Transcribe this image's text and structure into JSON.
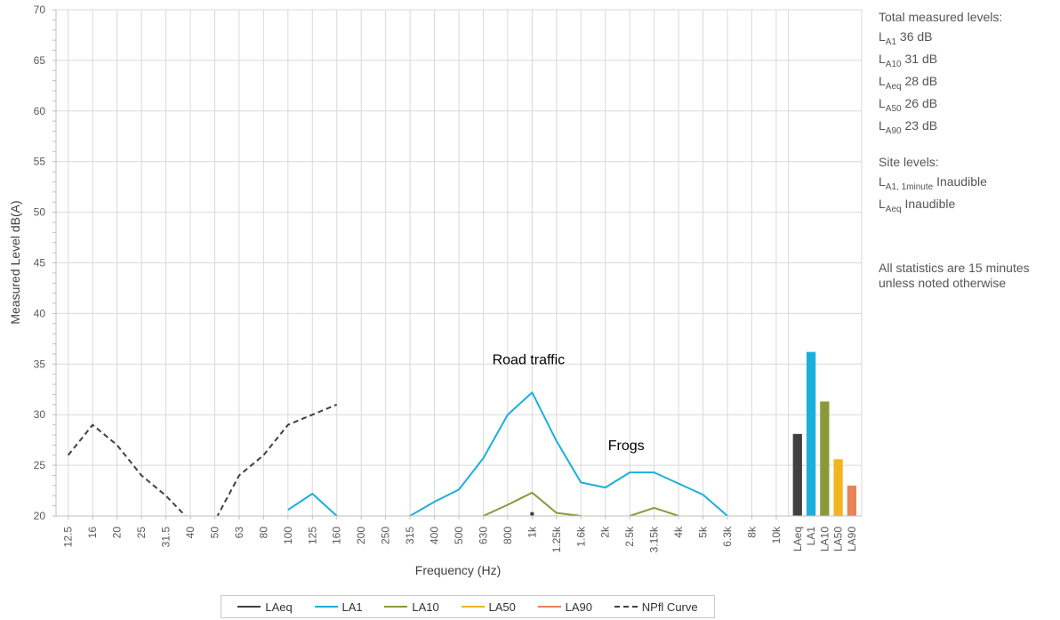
{
  "chart_data": {
    "type": "line",
    "xlabel": "Frequency (Hz)",
    "ylabel": "Measured Level dB(A)",
    "ylim": [
      20,
      70
    ],
    "ytick_step": 5,
    "grid": true,
    "categories": [
      "12.5",
      "16",
      "20",
      "25",
      "31.5",
      "40",
      "50",
      "63",
      "80",
      "100",
      "125",
      "160",
      "200",
      "250",
      "315",
      "400",
      "500",
      "630",
      "800",
      "1k",
      "1.25k",
      "1.6k",
      "2k",
      "2.5k",
      "3.15k",
      "4k",
      "5k",
      "6.3k",
      "8k",
      "10k"
    ],
    "series": [
      {
        "name": "LAeq",
        "color": "#404040",
        "style": "solid",
        "values": [
          null,
          null,
          null,
          null,
          null,
          null,
          null,
          null,
          null,
          null,
          null,
          null,
          null,
          null,
          null,
          null,
          null,
          null,
          null,
          20.2,
          null,
          null,
          null,
          null,
          null,
          null,
          null,
          null,
          null,
          null
        ]
      },
      {
        "name": "LA1",
        "color": "#1ab0dc",
        "style": "solid",
        "values": [
          null,
          null,
          null,
          null,
          null,
          null,
          null,
          null,
          null,
          20.6,
          22.2,
          20,
          null,
          null,
          20,
          21.4,
          22.6,
          25.7,
          30,
          32.2,
          27.4,
          23.3,
          22.8,
          24.3,
          24.3,
          23.2,
          22.1,
          20,
          null,
          null
        ]
      },
      {
        "name": "LA10",
        "color": "#8a9a3b",
        "style": "solid",
        "values": [
          null,
          null,
          null,
          null,
          null,
          null,
          null,
          null,
          null,
          null,
          null,
          null,
          null,
          null,
          null,
          null,
          null,
          20,
          21.1,
          22.3,
          20.3,
          20,
          null,
          20,
          20.8,
          20,
          null,
          null,
          null,
          null
        ]
      },
      {
        "name": "LA50",
        "color": "#f2b51f",
        "style": "solid",
        "values": [
          null,
          null,
          null,
          null,
          null,
          null,
          null,
          null,
          null,
          null,
          null,
          null,
          null,
          null,
          null,
          null,
          null,
          null,
          null,
          null,
          null,
          null,
          null,
          null,
          null,
          null,
          null,
          null,
          null,
          null
        ]
      },
      {
        "name": "LA90",
        "color": "#e8835a",
        "style": "solid",
        "values": [
          null,
          null,
          null,
          null,
          null,
          null,
          null,
          null,
          null,
          null,
          null,
          null,
          null,
          null,
          null,
          null,
          null,
          null,
          null,
          null,
          null,
          null,
          null,
          null,
          null,
          null,
          null,
          null,
          null,
          null
        ]
      },
      {
        "name": "NPfl Curve",
        "color": "#404040",
        "style": "dashed",
        "values": [
          26,
          29,
          27,
          24,
          22,
          19.5,
          19.5,
          24,
          26,
          29,
          30,
          31,
          null,
          null,
          null,
          null,
          null,
          null,
          null,
          null,
          null,
          null,
          null,
          null,
          null,
          null,
          null,
          null,
          null,
          null
        ]
      }
    ],
    "bars": [
      {
        "label": "LAeq",
        "value": 28.1,
        "color": "#404040"
      },
      {
        "label": "LA1",
        "value": 36.2,
        "color": "#1ab0dc"
      },
      {
        "label": "LA10",
        "value": 31.3,
        "color": "#8a9a3b"
      },
      {
        "label": "LA50",
        "value": 25.6,
        "color": "#f2b51f"
      },
      {
        "label": "LA90",
        "value": 23,
        "color": "#e8835a"
      }
    ],
    "annotations": [
      {
        "text": "Road traffic",
        "at_category": "1k",
        "at_value": 35
      },
      {
        "text": "Frogs",
        "at_category": "2.5k",
        "at_value": 26.5
      }
    ]
  },
  "side_panel": {
    "total_heading": "Total measured levels:",
    "totals": [
      {
        "base": "L",
        "sub": "A1",
        "value": "36 dB"
      },
      {
        "base": "L",
        "sub": "A10",
        "value": "31 dB"
      },
      {
        "base": "L",
        "sub": "Aeq",
        "value": "28 dB"
      },
      {
        "base": "L",
        "sub": "A50",
        "value": "26 dB"
      },
      {
        "base": "L",
        "sub": "A90",
        "value": "23 dB"
      }
    ],
    "site_heading": "Site levels:",
    "site": [
      {
        "base": "L",
        "sub": "A1, 1minute",
        "value": "Inaudible"
      },
      {
        "base": "L",
        "sub": "Aeq",
        "value": "Inaudible"
      }
    ],
    "note_line1": "All statistics are 15 minutes",
    "note_line2": "unless noted otherwise"
  }
}
